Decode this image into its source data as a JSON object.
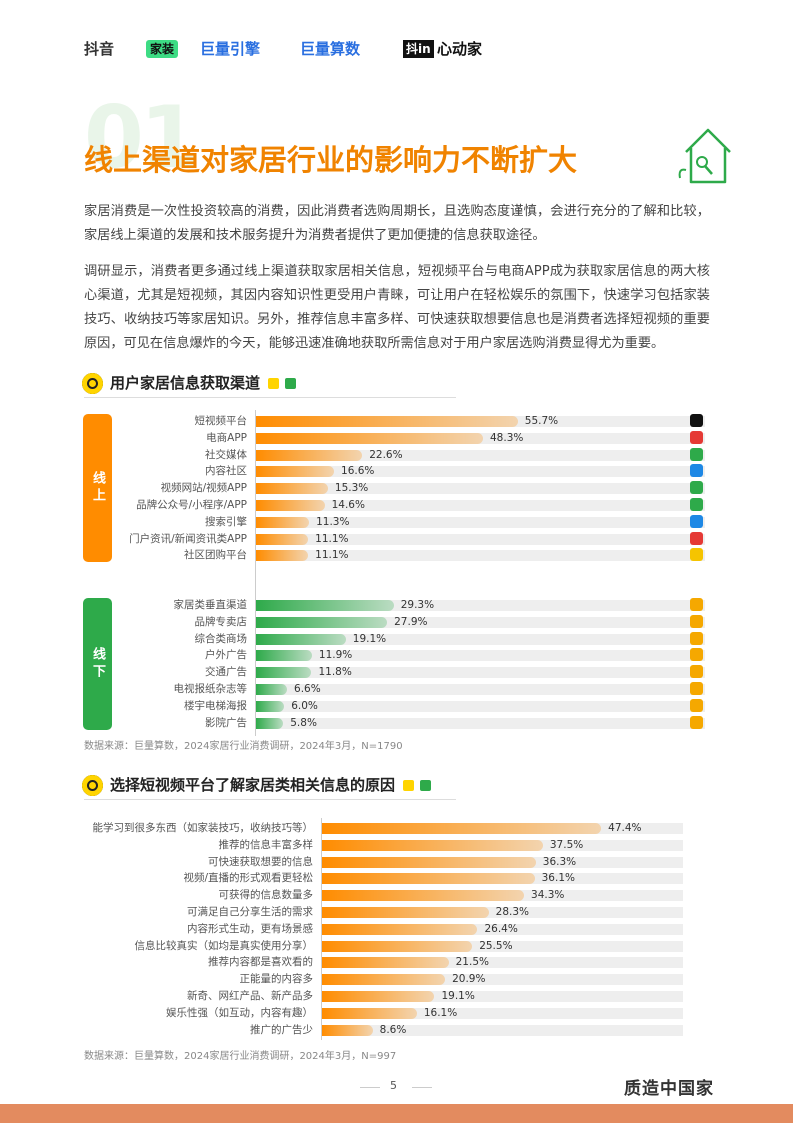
{
  "header": {
    "logos": [
      "抖音",
      "家装",
      "巨量引擎",
      "巨量算数",
      "抖in",
      "心动家"
    ]
  },
  "section_number": "01",
  "title": "线上渠道对家居行业的影响力不断扩大",
  "paragraphs": [
    "家居消费是一次性投资较高的消费，因此消费者选购周期长，且选购态度谨慎，会进行充分的了解和比较，家居线上渠道的发展和技术服务提升为消费者提供了更加便捷的信息获取途径。",
    "调研显示，消费者更多通过线上渠道获取家居相关信息，短视频平台与电商APP成为获取家居信息的两大核心渠道，尤其是短视频，其因内容知识性更受用户青睐，可让用户在轻松娱乐的氛围下，快速学习包括家装技巧、收纳技巧等家居知识。另外，推荐信息丰富多样、可快速获取想要信息也是消费者选择短视频的重要原因，可见在信息爆炸的今天，能够迅速准确地获取所需信息对于用户家居选购消费显得尤为重要。"
  ],
  "chart1": {
    "title": "用户家居信息获取渠道",
    "groups": [
      {
        "name": "线上",
        "color": "#ff8c00",
        "categories": [
          "短视频平台",
          "电商APP",
          "社交媒体",
          "内容社区",
          "视频网站/视频APP",
          "品牌公众号/小程序/APP",
          "搜索引擎",
          "门户资讯/新闻资讯类APP",
          "社区团购平台"
        ],
        "values": [
          55.7,
          48.3,
          22.6,
          16.6,
          15.3,
          14.6,
          11.3,
          11.1,
          11.1
        ],
        "value_labels": [
          "55.7%",
          "48.3%",
          "22.6%",
          "16.6%",
          "15.3%",
          "14.6%",
          "11.3%",
          "11.1%",
          "11.1%"
        ]
      },
      {
        "name": "线下",
        "color": "#2eaa4a",
        "categories": [
          "家居类垂直渠道",
          "品牌专卖店",
          "综合类商场",
          "户外广告",
          "交通广告",
          "电视报纸杂志等",
          "楼宇电梯海报",
          "影院广告"
        ],
        "values": [
          29.3,
          27.9,
          19.1,
          11.9,
          11.8,
          6.6,
          6.0,
          5.8
        ],
        "value_labels": [
          "29.3%",
          "27.9%",
          "19.1%",
          "11.9%",
          "11.8%",
          "6.6%",
          "6.0%",
          "5.8%"
        ]
      }
    ],
    "source": "数据来源：巨量算数，2024家居行业消费调研，2024年3月，N=1790"
  },
  "chart2": {
    "title": "选择短视频平台了解家居类相关信息的原因",
    "color": "#ff8c00",
    "categories": [
      "能学习到很多东西（如家装技巧，收纳技巧等）",
      "推荐的信息丰富多样",
      "可快速获取想要的信息",
      "视频/直播的形式观看更轻松",
      "可获得的信息数量多",
      "可满足自己分享生活的需求",
      "内容形式生动，更有场景感",
      "信息比较真实（如均是真实使用分享）",
      "推荐内容都是喜欢看的",
      "正能量的内容多",
      "新奇、网红产品、新产品多",
      "娱乐性强（如互动，内容有趣）",
      "推广的广告少"
    ],
    "values": [
      47.4,
      37.5,
      36.3,
      36.1,
      34.3,
      28.3,
      26.4,
      25.5,
      21.5,
      20.9,
      19.1,
      16.1,
      8.6
    ],
    "value_labels": [
      "47.4%",
      "37.5%",
      "36.3%",
      "36.1%",
      "34.3%",
      "28.3%",
      "26.4%",
      "25.5%",
      "21.5%",
      "20.9%",
      "19.1%",
      "16.1%",
      "8.6%"
    ],
    "source": "数据来源：巨量算数，2024家居行业消费调研，2024年3月，N=997"
  },
  "page_number": "5",
  "footer_brand": "质造中国家"
}
